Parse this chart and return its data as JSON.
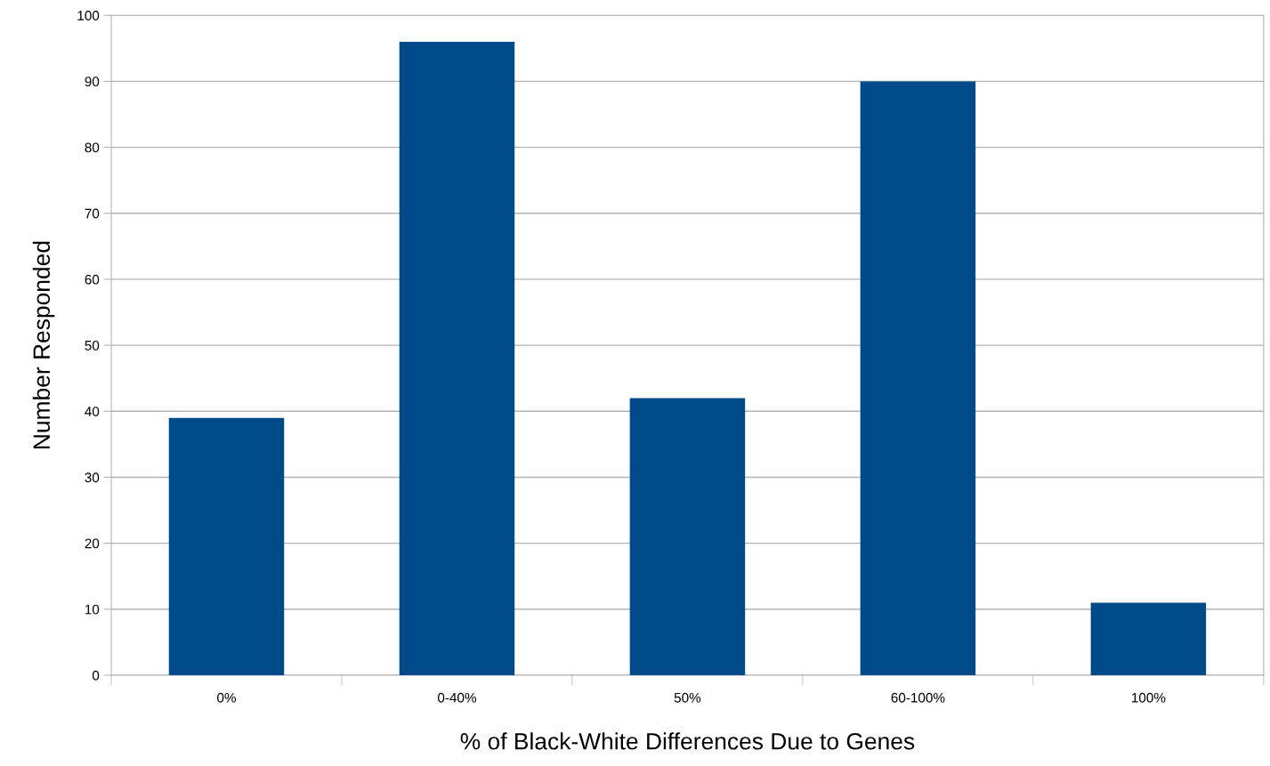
{
  "chart_data": {
    "type": "bar",
    "xlabel": "% of Black-White Differences Due to Genes",
    "ylabel": "Number Responded",
    "categories": [
      "0%",
      "0-40%",
      "50%",
      "60-100%",
      "100%"
    ],
    "values": [
      39,
      96,
      42,
      90,
      11
    ],
    "color": "#004a8a",
    "ylim": [
      0,
      100
    ],
    "yticks": [
      0,
      10,
      20,
      30,
      40,
      50,
      60,
      70,
      80,
      90,
      100
    ],
    "grid": "y",
    "legend": false
  }
}
